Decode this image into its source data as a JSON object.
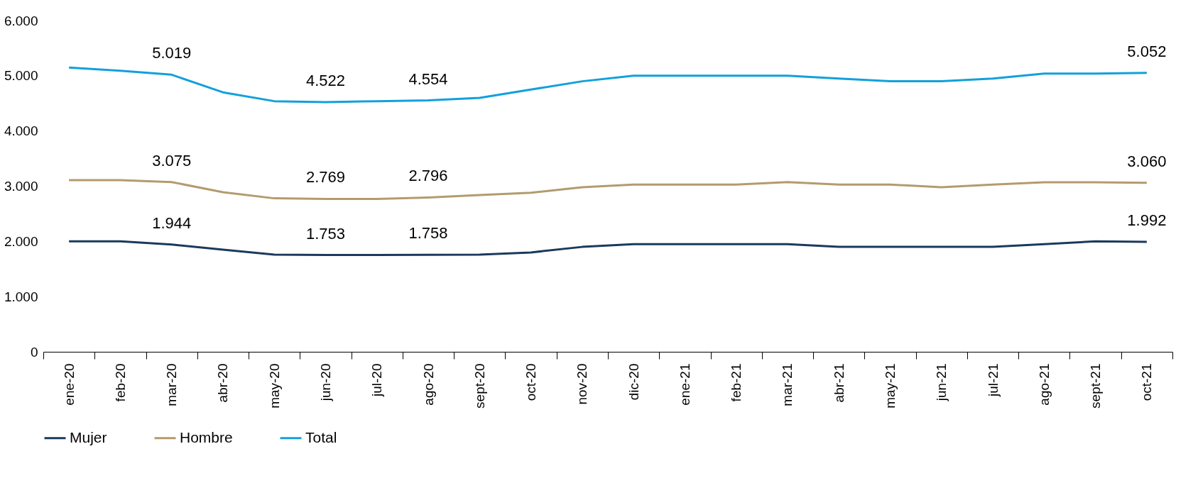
{
  "chart_data": {
    "type": "line",
    "categories": [
      "ene-20",
      "feb-20",
      "mar-20",
      "abr-20",
      "may-20",
      "jun-20",
      "jul-20",
      "ago-20",
      "sept-20",
      "oct-20",
      "nov-20",
      "dic-20",
      "ene-21",
      "feb-21",
      "mar-21",
      "abr-21",
      "may-21",
      "jun-21",
      "jul-21",
      "ago-21",
      "sept-21",
      "oct-21"
    ],
    "series": [
      {
        "name": "Mujer",
        "color": "#1a3a5c",
        "values": [
          2000,
          2000,
          1944,
          1850,
          1760,
          1753,
          1755,
          1758,
          1760,
          1800,
          1900,
          1950,
          1950,
          1950,
          1950,
          1900,
          1900,
          1900,
          1900,
          1950,
          2000,
          1992
        ],
        "value_labels": [
          null,
          null,
          "1.944",
          null,
          null,
          "1.753",
          null,
          "1.758",
          null,
          null,
          null,
          null,
          null,
          null,
          null,
          null,
          null,
          null,
          null,
          null,
          null,
          "1.992"
        ]
      },
      {
        "name": "Hombre",
        "color": "#b39b6e",
        "values": [
          3110,
          3110,
          3075,
          2890,
          2780,
          2769,
          2770,
          2796,
          2840,
          2880,
          2980,
          3030,
          3030,
          3030,
          3075,
          3030,
          3030,
          2980,
          3030,
          3070,
          3070,
          3060
        ],
        "value_labels": [
          null,
          null,
          "3.075",
          null,
          null,
          "2.769",
          null,
          "2.796",
          null,
          null,
          null,
          null,
          null,
          null,
          null,
          null,
          null,
          null,
          null,
          null,
          null,
          "3.060"
        ]
      },
      {
        "name": "Total",
        "color": "#12a0dc",
        "values": [
          5150,
          5090,
          5019,
          4700,
          4540,
          4522,
          4540,
          4554,
          4600,
          4750,
          4900,
          5000,
          5000,
          5000,
          5000,
          4950,
          4900,
          4900,
          4950,
          5040,
          5040,
          5052
        ],
        "value_labels": [
          null,
          null,
          "5.019",
          null,
          null,
          "4.522",
          null,
          "4.554",
          null,
          null,
          null,
          null,
          null,
          null,
          null,
          null,
          null,
          null,
          null,
          null,
          null,
          "5.052"
        ]
      }
    ],
    "ylim": [
      0,
      6000
    ],
    "yticks": [
      {
        "value": 0,
        "label": "0"
      },
      {
        "value": 1000,
        "label": "1.000"
      },
      {
        "value": 2000,
        "label": "2.000"
      },
      {
        "value": 3000,
        "label": "3.000"
      },
      {
        "value": 4000,
        "label": "4.000"
      },
      {
        "value": 5000,
        "label": "5.000"
      },
      {
        "value": 6000,
        "label": "6.000"
      }
    ],
    "legend": "bottom",
    "grid": false,
    "marker": "none",
    "line_style": "solid"
  }
}
